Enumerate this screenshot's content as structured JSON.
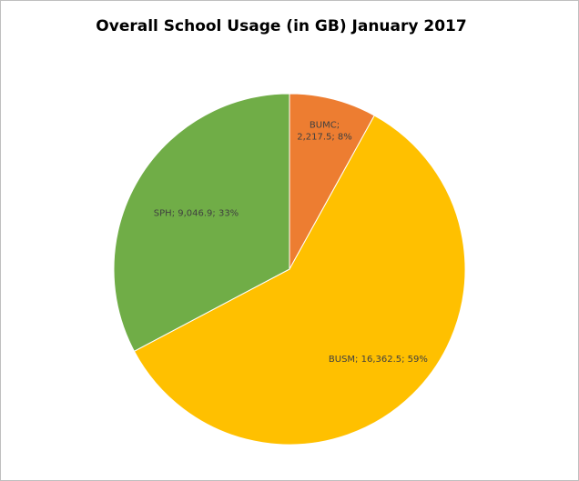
{
  "chart_data": {
    "type": "pie",
    "title": "Overall School Usage (in GB) January 2017",
    "categories": [
      "BUMC",
      "BUSM",
      "SPH"
    ],
    "values": [
      2217.5,
      16362.5,
      9046.9
    ],
    "percent_labels": [
      "8%",
      "59%",
      "33%"
    ],
    "value_labels": [
      "2,217.5",
      "16,362.5",
      "9,046.9"
    ],
    "colors": [
      "#ED7D31",
      "#FFC000",
      "#70AD47"
    ],
    "legend": "none",
    "start_angle_deg": 0,
    "direction": "clockwise"
  }
}
